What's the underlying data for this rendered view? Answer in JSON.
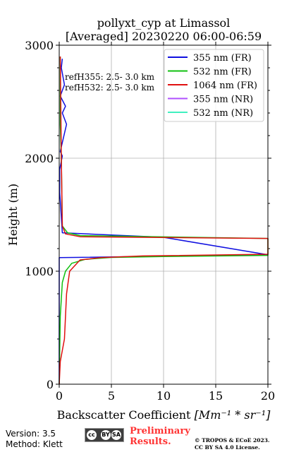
{
  "chart_data": {
    "type": "line",
    "title": "pollyxt_cyp at Limassol",
    "subtitle": "[Averaged] 20230220 06:00-06:59",
    "xlabel": "Backscatter Coefficient [Mm⁻¹ * sr⁻¹]",
    "ylabel": "Height (m)",
    "xlim": [
      0,
      20
    ],
    "ylim": [
      0,
      3000
    ],
    "xticks": [
      "0",
      "5",
      "10",
      "15",
      "20"
    ],
    "yticks": [
      "0",
      "1000",
      "2000",
      "3000"
    ],
    "grid": true,
    "legend_position": "top-right",
    "annotations": [
      "refH355:  2.5- 3.0 km",
      "refH532:  2.5- 3.0 km"
    ],
    "series": [
      {
        "name": "355 nm (FR)",
        "color": "#1010e0",
        "x": [
          0,
          0,
          20,
          10,
          0.3,
          0.05,
          0.05,
          0.3,
          0.1,
          0.7,
          0.3,
          0.6,
          0.1,
          0.5,
          0.2,
          0.3
        ],
        "y": [
          0,
          1120,
          1145,
          1300,
          1340,
          1700,
          1900,
          2020,
          2060,
          2300,
          2400,
          2460,
          2550,
          2650,
          2800,
          2880
        ]
      },
      {
        "name": "532 nm (FR)",
        "color": "#10c010",
        "x": [
          0,
          0.05,
          0.1,
          0.3,
          0.6,
          1.2,
          2.5,
          5,
          10,
          20,
          20,
          2,
          0.8,
          0.3,
          0.2,
          0.1,
          0.1
        ],
        "y": [
          0,
          300,
          600,
          900,
          1000,
          1070,
          1105,
          1122,
          1130,
          1140,
          1290,
          1315,
          1340,
          1400,
          2000,
          2300,
          2900
        ]
      },
      {
        "name": "1064 nm (FR)",
        "color": "#e01010",
        "x": [
          0,
          0.1,
          0.5,
          0.6,
          0.7,
          1.0,
          2.0,
          4.0,
          8.0,
          20,
          20,
          2,
          0.6,
          0.3,
          0.2,
          0.15,
          0.1
        ],
        "y": [
          0,
          200,
          400,
          600,
          800,
          1000,
          1100,
          1120,
          1135,
          1150,
          1290,
          1305,
          1330,
          1400,
          2000,
          2500,
          2900
        ]
      },
      {
        "name": "355 nm (NR)",
        "color": "#b050ff",
        "x": [],
        "y": []
      },
      {
        "name": "532 nm (NR)",
        "color": "#40f0c0",
        "x": [],
        "y": []
      }
    ]
  },
  "footer": {
    "version": "Version: 3.5",
    "method": "Method: Klett",
    "preliminary_1": "Preliminary",
    "preliminary_2": "Results.",
    "copyright_1": "© TROPOS & ECoE 2023.",
    "copyright_2": "CC BY SA 4.0 License.",
    "badge_1": "cc",
    "badge_2": "BY",
    "badge_3": "SA"
  }
}
